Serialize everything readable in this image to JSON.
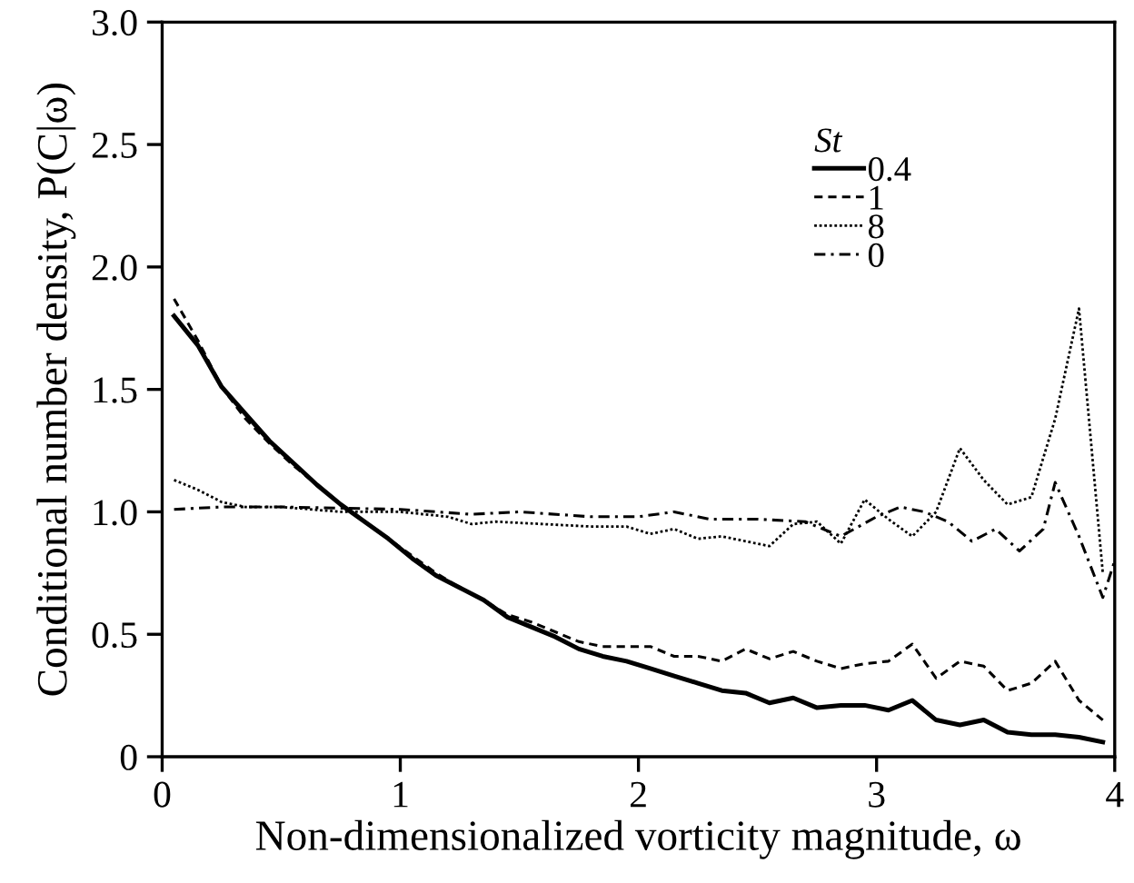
{
  "chart_data": {
    "type": "line",
    "xlabel": "Non-dimensionalized vorticity magnitude, ω",
    "ylabel": "Conditional number density, P(C|ω)",
    "legend_title": "St",
    "legend": "top right",
    "grid": false,
    "marker": "none",
    "xlim": [
      0,
      4
    ],
    "ylim": [
      0,
      3
    ],
    "xticks": [
      0,
      1,
      2,
      3,
      4
    ],
    "yticks": [
      0,
      0.5,
      {
        "value": 1,
        "label": "1.0"
      },
      1.5,
      {
        "value": 2,
        "label": "2.0"
      },
      2.5,
      {
        "value": 3,
        "label": "3.0"
      }
    ],
    "series": [
      {
        "name": "0.4",
        "color": "#000000",
        "line_style": "solid",
        "x": [
          0.05,
          0.15,
          0.25,
          0.35,
          0.45,
          0.55,
          0.65,
          0.75,
          0.85,
          0.95,
          1.05,
          1.15,
          1.25,
          1.35,
          1.45,
          1.55,
          1.65,
          1.75,
          1.85,
          1.95,
          2.05,
          2.15,
          2.25,
          2.35,
          2.45,
          2.55,
          2.65,
          2.75,
          2.85,
          2.95,
          3.05,
          3.15,
          3.25,
          3.35,
          3.45,
          3.55,
          3.65,
          3.75,
          3.85,
          3.95
        ],
        "values": [
          1.8,
          1.68,
          1.51,
          1.4,
          1.29,
          1.2,
          1.11,
          1.03,
          0.96,
          0.89,
          0.81,
          0.74,
          0.69,
          0.64,
          0.57,
          0.53,
          0.49,
          0.44,
          0.41,
          0.39,
          0.36,
          0.33,
          0.3,
          0.27,
          0.26,
          0.22,
          0.24,
          0.2,
          0.21,
          0.21,
          0.19,
          0.23,
          0.15,
          0.13,
          0.15,
          0.1,
          0.09,
          0.09,
          0.08,
          0.06
        ]
      },
      {
        "name": "1",
        "color": "#000000",
        "line_style": "dashed",
        "x": [
          0.05,
          0.15,
          0.25,
          0.35,
          0.45,
          0.55,
          0.65,
          0.75,
          0.85,
          0.95,
          1.05,
          1.15,
          1.25,
          1.35,
          1.45,
          1.55,
          1.65,
          1.75,
          1.85,
          1.95,
          2.05,
          2.15,
          2.25,
          2.35,
          2.45,
          2.55,
          2.65,
          2.75,
          2.85,
          2.95,
          3.05,
          3.15,
          3.25,
          3.35,
          3.45,
          3.55,
          3.65,
          3.75,
          3.85,
          3.95
        ],
        "values": [
          1.87,
          1.7,
          1.51,
          1.38,
          1.28,
          1.19,
          1.11,
          1.03,
          0.96,
          0.89,
          0.82,
          0.75,
          0.69,
          0.64,
          0.58,
          0.55,
          0.51,
          0.47,
          0.45,
          0.45,
          0.45,
          0.41,
          0.41,
          0.39,
          0.44,
          0.4,
          0.43,
          0.39,
          0.36,
          0.38,
          0.39,
          0.46,
          0.32,
          0.39,
          0.37,
          0.27,
          0.3,
          0.39,
          0.23,
          0.15
        ]
      },
      {
        "name": "8",
        "color": "#000000",
        "line_style": "dotted",
        "x": [
          0.05,
          0.15,
          0.25,
          0.35,
          0.5,
          0.75,
          1.0,
          1.2,
          1.3,
          1.4,
          1.6,
          1.8,
          1.95,
          2.05,
          2.15,
          2.25,
          2.35,
          2.45,
          2.55,
          2.65,
          2.75,
          2.85,
          2.95,
          3.05,
          3.15,
          3.25,
          3.35,
          3.45,
          3.55,
          3.65,
          3.75,
          3.85,
          3.95
        ],
        "values": [
          1.13,
          1.09,
          1.04,
          1.02,
          1.02,
          1.0,
          1.0,
          0.98,
          0.95,
          0.96,
          0.95,
          0.94,
          0.94,
          0.91,
          0.93,
          0.89,
          0.9,
          0.88,
          0.86,
          0.95,
          0.96,
          0.87,
          1.05,
          0.97,
          0.9,
          1.0,
          1.26,
          1.13,
          1.03,
          1.06,
          1.38,
          1.83,
          0.75
        ]
      },
      {
        "name": "0",
        "color": "#000000",
        "line_style": "dashdot",
        "x": [
          0.05,
          0.25,
          0.5,
          1.0,
          1.3,
          1.5,
          1.8,
          2.0,
          2.15,
          2.3,
          2.5,
          2.7,
          2.85,
          3.0,
          3.1,
          3.2,
          3.3,
          3.4,
          3.5,
          3.6,
          3.7,
          3.75,
          3.85,
          3.95,
          4.0
        ],
        "values": [
          1.01,
          1.02,
          1.02,
          1.01,
          0.99,
          1.0,
          0.98,
          0.98,
          1.0,
          0.97,
          0.97,
          0.96,
          0.9,
          0.98,
          1.02,
          1.0,
          0.96,
          0.88,
          0.93,
          0.84,
          0.93,
          1.12,
          0.9,
          0.65,
          0.8
        ]
      }
    ]
  }
}
